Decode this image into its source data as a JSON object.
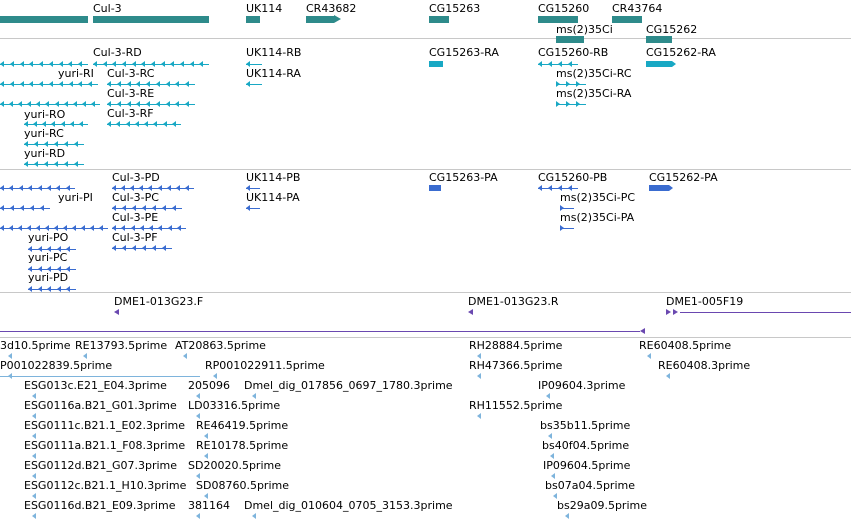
{
  "colors": {
    "gene": "#2e8b8b",
    "transcript": "#18a8c4",
    "protein": "#3a6cd0",
    "clone": "#6a48b0",
    "est": "#7eb4dc",
    "divider": "#c8c8c8"
  },
  "tracks": {
    "genes": {
      "labels": [
        "Cul-3",
        "UK114",
        "CR43682",
        "CG15263",
        "CG15260",
        "CR43764",
        "ms(2)35Ci",
        "CG15262"
      ]
    },
    "transcripts": {
      "labels": [
        "Cul-3-RD",
        "yuri-RI",
        "Cul-3-RC",
        "Cul-3-RE",
        "Cul-3-RF",
        "yuri-RO",
        "yuri-RC",
        "yuri-RD",
        "UK114-RB",
        "UK114-RA",
        "CG15263-RA",
        "CG15260-RB",
        "ms(2)35Ci-RC",
        "ms(2)35Ci-RA",
        "CG15262-RA"
      ]
    },
    "proteins": {
      "labels": [
        "Cul-3-PD",
        "yuri-PI",
        "Cul-3-PC",
        "Cul-3-PE",
        "Cul-3-PF",
        "yuri-PO",
        "yuri-PC",
        "yuri-PD",
        "UK114-PB",
        "UK114-PA",
        "CG15263-PA",
        "CG15260-PB",
        "ms(2)35Ci-PC",
        "ms(2)35Ci-PA",
        "CG15262-PA"
      ]
    },
    "clones": {
      "labels": [
        "DME1-013G23.F",
        "DME1-013G23.R",
        "DME1-005F19"
      ]
    },
    "ests": {
      "labels": [
        "3d10.5prime",
        "RE13793.5prime",
        "AT20863.5prime",
        "RH28884.5prime",
        "RE60408.5prime",
        "P001022839.5prime",
        "RP001022911.5prime",
        "RH47366.5prime",
        "RE60408.3prime",
        "ESG013c.E21_E04.3prime",
        "205096",
        "Dmel_dig_017856_0697_1780.3prime",
        "IP09604.3prime",
        "ESG0116a.B21_G01.3prime",
        "LD03316.5prime",
        "RH11552.5prime",
        "ESG0111c.B21.1_E02.3prime",
        "RE46419.5prime",
        "bs35b11.5prime",
        "ESG0111a.B21.1_F08.3prime",
        "RE10178.5prime",
        "bs40f04.5prime",
        "ESG0112d.B21_G07.3prime",
        "SD20020.5prime",
        "IP09604.5prime",
        "ESG0112c.B21.1_H10.3prime",
        "SD08760.5prime",
        "bs07a04.5prime",
        "ESG0116d.B21_E09.3prime",
        "381164",
        "Dmel_dig_010604_0705_3153.3prime",
        "bs29a09.5prime"
      ]
    }
  }
}
